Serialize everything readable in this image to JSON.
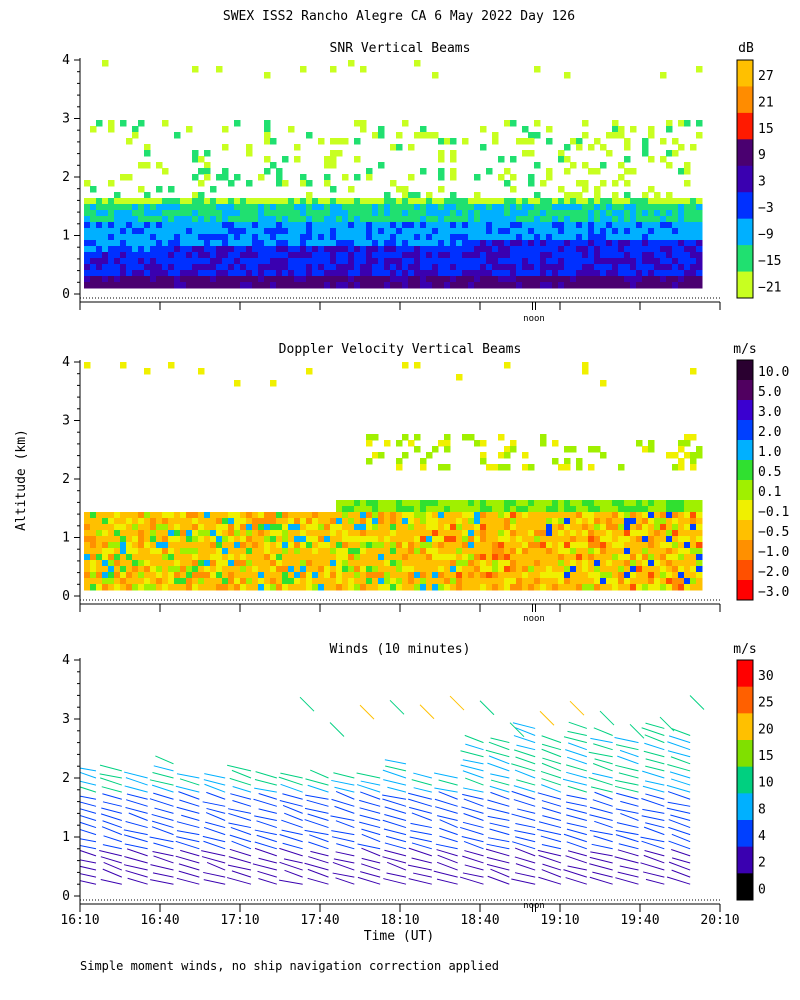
{
  "figure_title": "SWEX ISS2 Rancho Alegre CA   6 May 2022 Day 126",
  "footnote": "Simple moment winds, no ship navigation correction applied",
  "shared_ylabel": "Altitude (km)",
  "shared_xlabel": "Time (UT)",
  "noon_label": "noon",
  "chart_data": [
    {
      "type": "heatmap",
      "title": "SNR Vertical Beams",
      "colorbar_unit": "dB",
      "colorbar_ticks": [
        "27",
        "21",
        "15",
        "9",
        "3",
        "−3",
        "−9",
        "−15",
        "−21"
      ],
      "colorbar_colors": [
        "#ffc000",
        "#ff8c00",
        "#ff1a00",
        "#4a0070",
        "#3a00b0",
        "#0030ff",
        "#00b0ff",
        "#20e070",
        "#c8ff20"
      ],
      "yticks": [
        "0",
        "1",
        "2",
        "3",
        "4"
      ],
      "ylim": [
        0,
        4
      ],
      "x_range": [
        "16:10",
        "20:10"
      ]
    },
    {
      "type": "heatmap",
      "title": "Doppler Velocity Vertical Beams",
      "colorbar_unit": "m/s",
      "colorbar_ticks": [
        "10.0",
        "5.0",
        "3.0",
        "2.0",
        "1.0",
        "0.5",
        "0.1",
        "−0.1",
        "−0.5",
        "−1.0",
        "−2.0",
        "−3.0"
      ],
      "colorbar_colors": [
        "#2a0030",
        "#500060",
        "#3a00d0",
        "#0040ff",
        "#00b0ff",
        "#30e030",
        "#a0f000",
        "#f0f000",
        "#ffc000",
        "#ff9000",
        "#ff5000",
        "#ff0000"
      ],
      "yticks": [
        "0",
        "1",
        "2",
        "3",
        "4"
      ],
      "ylim": [
        0,
        4
      ],
      "x_range": [
        "16:10",
        "20:10"
      ]
    },
    {
      "type": "scatter",
      "title": "Winds (10 minutes)",
      "colorbar_unit": "m/s",
      "colorbar_ticks": [
        "30",
        "25",
        "20",
        "15",
        "10",
        "8",
        "4",
        "2",
        "0"
      ],
      "colorbar_colors": [
        "#ff0000",
        "#ff6000",
        "#ffc000",
        "#80e000",
        "#00d080",
        "#00b0ff",
        "#0040ff",
        "#3a00b0",
        "#000000"
      ],
      "yticks": [
        "0",
        "1",
        "2",
        "3",
        "4"
      ],
      "ylim": [
        0,
        4
      ],
      "xticks": [
        "16:10",
        "16:40",
        "17:10",
        "17:40",
        "18:10",
        "18:40",
        "19:10",
        "19:40",
        "20:10"
      ],
      "x_range": [
        "16:10",
        "20:10"
      ],
      "xlabel": "Time (UT)"
    }
  ]
}
